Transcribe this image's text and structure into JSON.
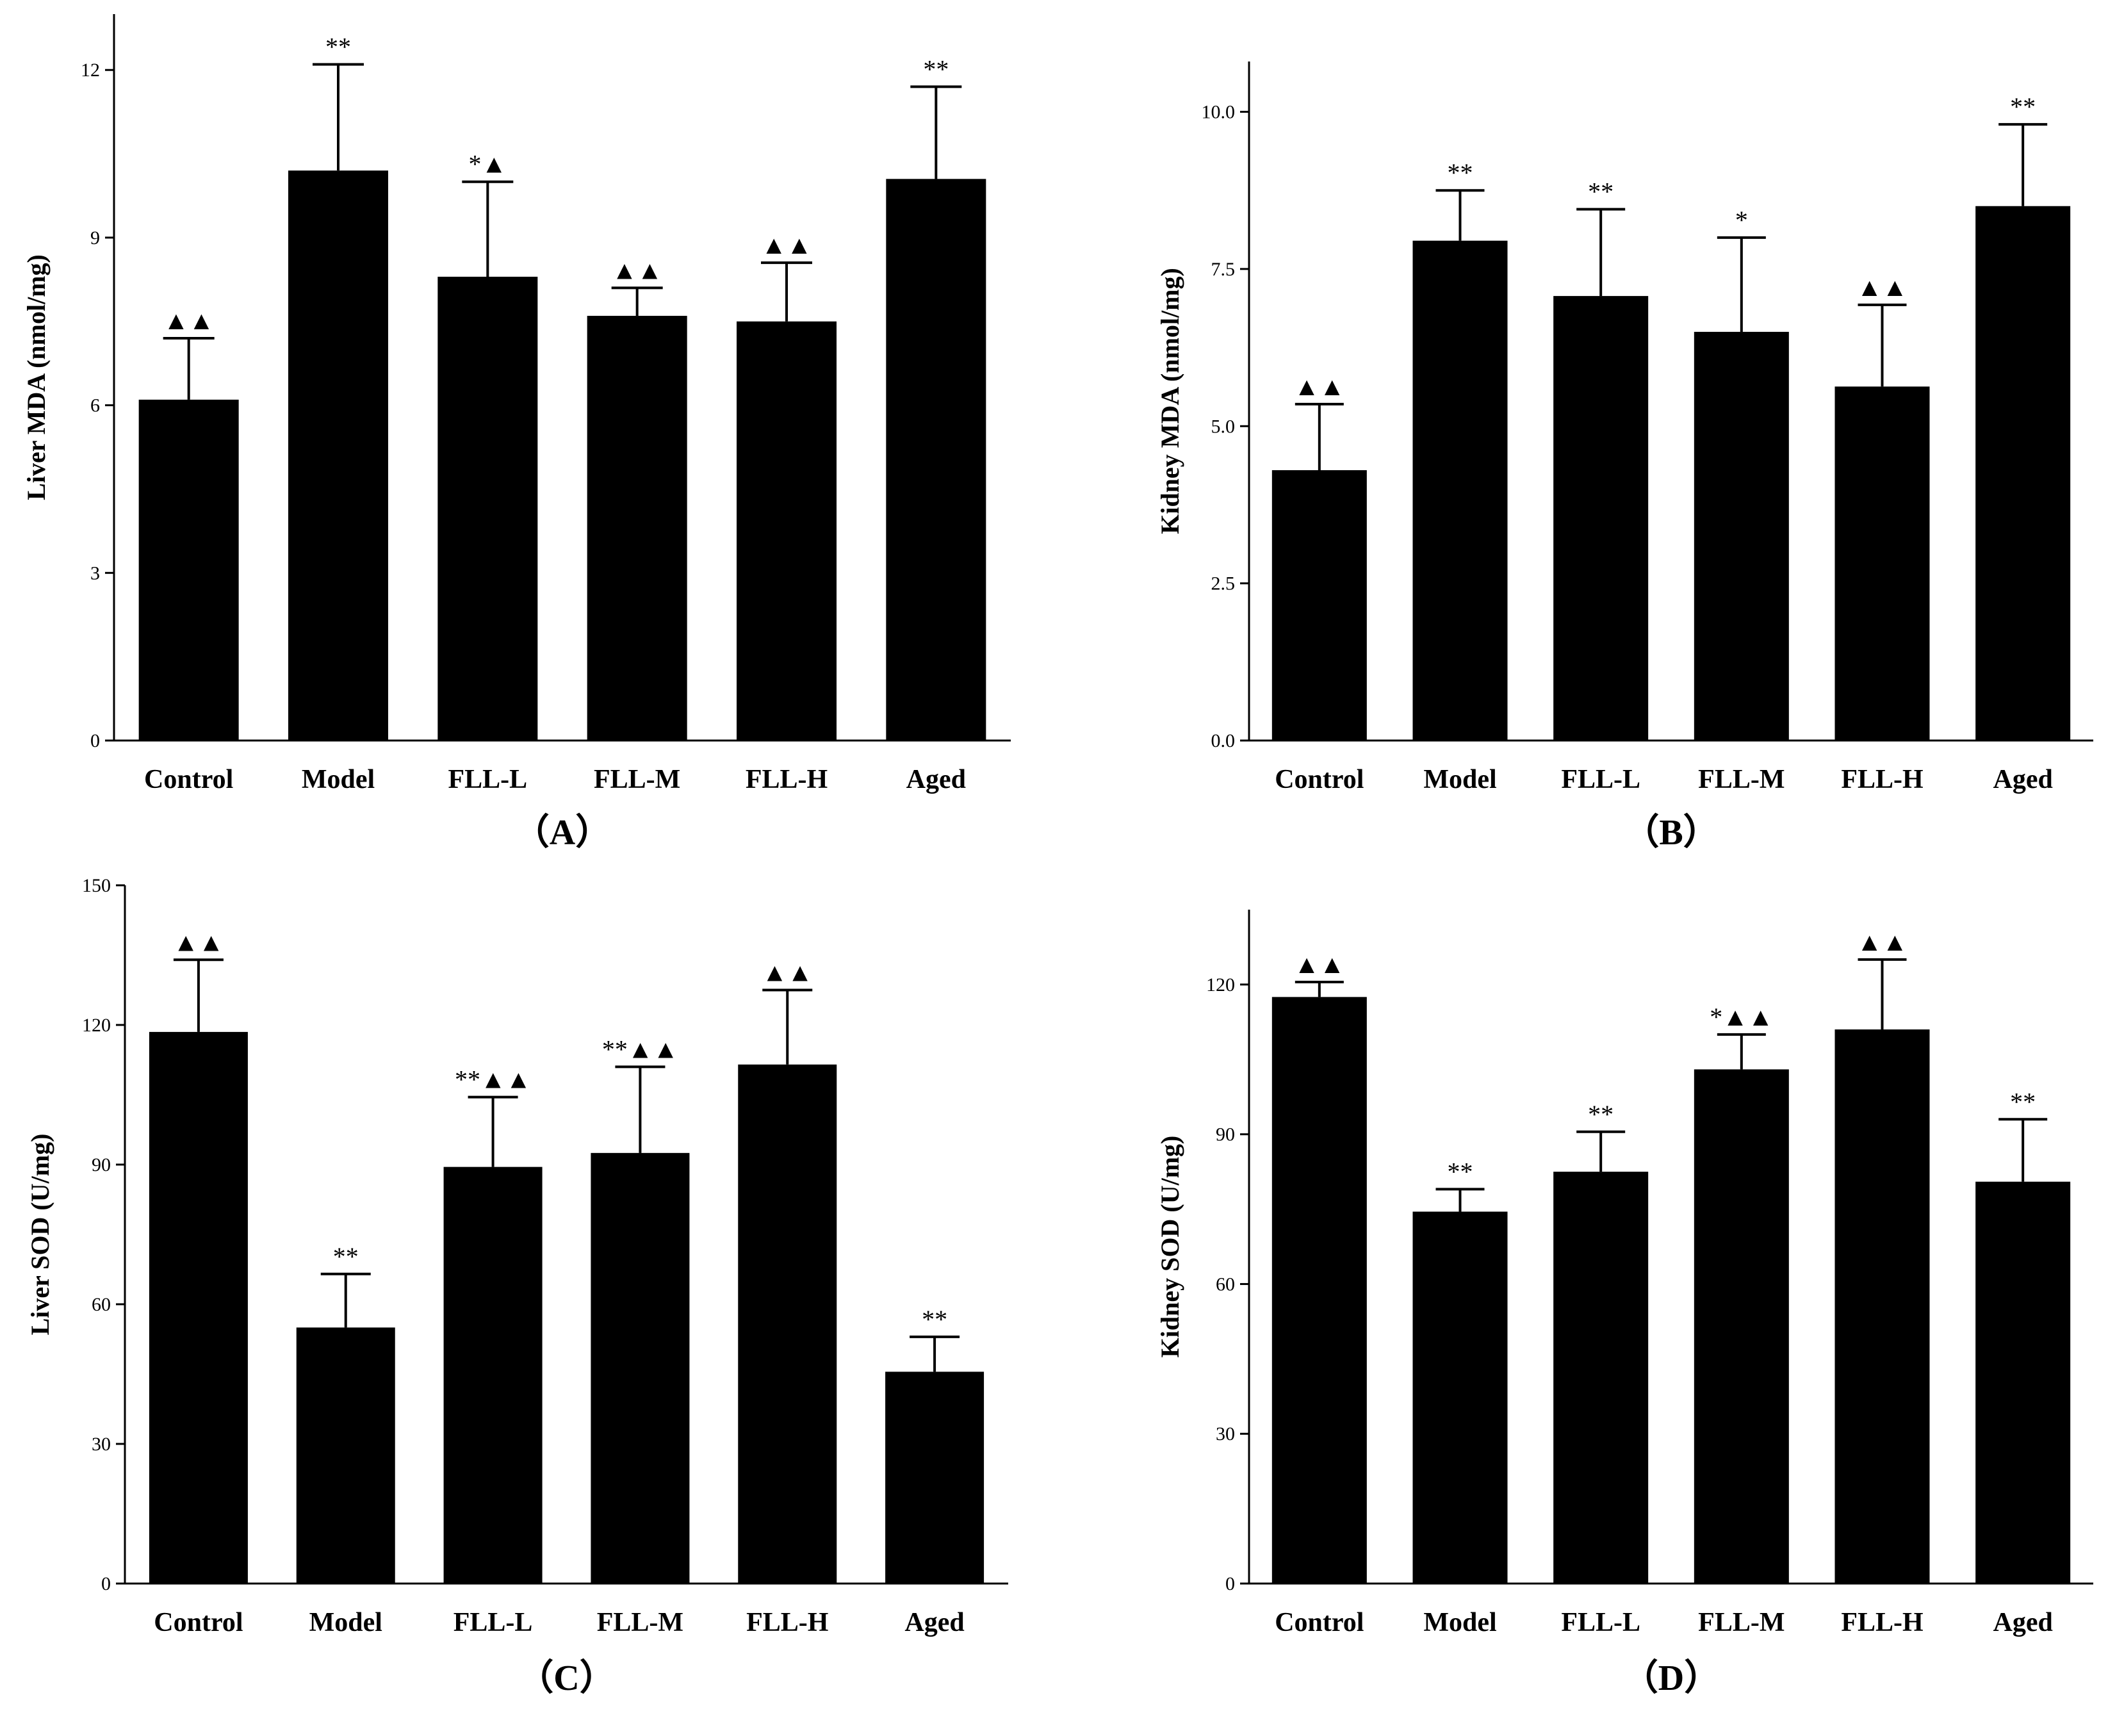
{
  "figure": {
    "background": "#ffffff",
    "bar_color": "#000000"
  },
  "chart_data": [
    {
      "type": "bar",
      "panel_label": "（A）",
      "title": "",
      "xlabel": "",
      "ylabel": "Liver MDA (nmol/mg)",
      "ylim": [
        0,
        13
      ],
      "yticks": [
        0,
        3,
        6,
        9,
        12
      ],
      "ytick_labels": [
        "0",
        "3",
        "6",
        "9",
        "12"
      ],
      "categories": [
        "Control",
        "Model",
        "FLL-L",
        "FLL-M",
        "FLL-H",
        "Aged"
      ],
      "values": [
        6.1,
        10.2,
        8.3,
        7.6,
        7.5,
        10.05
      ],
      "errors": [
        1.1,
        1.9,
        1.7,
        0.5,
        1.05,
        1.65
      ],
      "significance": [
        "▲▲",
        "**",
        "*▲",
        "▲▲",
        "▲▲",
        "**"
      ]
    },
    {
      "type": "bar",
      "panel_label": "（B）",
      "title": "",
      "xlabel": "",
      "ylabel": "Kidney MDA (nmol/mg)",
      "ylim": [
        0,
        10.8
      ],
      "yticks": [
        0,
        2.5,
        5,
        7.5,
        10
      ],
      "ytick_labels": [
        "0.0",
        "2.5",
        "5.0",
        "7.5",
        "10.0"
      ],
      "categories": [
        "Control",
        "Model",
        "FLL-L",
        "FLL-M",
        "FLL-H",
        "Aged"
      ],
      "values": [
        4.3,
        7.95,
        7.07,
        6.5,
        5.63,
        8.5
      ],
      "errors": [
        1.05,
        0.8,
        1.38,
        1.5,
        1.3,
        1.3
      ],
      "significance": [
        "▲▲",
        "**",
        "**",
        "*",
        "▲▲",
        "**"
      ]
    },
    {
      "type": "bar",
      "panel_label": "（C）",
      "title": "",
      "xlabel": "",
      "ylabel": "Liver SOD (U/mg)",
      "ylim": [
        0,
        150
      ],
      "yticks": [
        0,
        30,
        60,
        90,
        120,
        150
      ],
      "ytick_labels": [
        "0",
        "30",
        "60",
        "90",
        "120",
        "150"
      ],
      "categories": [
        "Control",
        "Model",
        "FLL-L",
        "FLL-M",
        "FLL-H",
        "Aged"
      ],
      "values": [
        118.5,
        55,
        89.5,
        92.5,
        111.5,
        45.5
      ],
      "errors": [
        15.5,
        11.5,
        15,
        18.5,
        16,
        7.5
      ],
      "significance": [
        "▲▲",
        "**",
        "**▲▲",
        "**▲▲",
        "▲▲",
        "**"
      ]
    },
    {
      "type": "bar",
      "panel_label": "（D）",
      "title": "",
      "xlabel": "",
      "ylabel": "Kidney SOD (U/mg)",
      "ylim": [
        0,
        135
      ],
      "yticks": [
        0,
        30,
        60,
        90,
        120
      ],
      "ytick_labels": [
        "0",
        "30",
        "60",
        "90",
        "120"
      ],
      "categories": [
        "Control",
        "Model",
        "FLL-L",
        "FLL-M",
        "FLL-H",
        "Aged"
      ],
      "values": [
        117.5,
        74.5,
        82.5,
        103,
        111,
        80.5
      ],
      "errors": [
        3,
        4.5,
        8,
        7,
        14,
        12.5
      ],
      "significance": [
        "▲▲",
        "**",
        "**",
        "*▲▲",
        "▲▲",
        "**"
      ]
    }
  ]
}
